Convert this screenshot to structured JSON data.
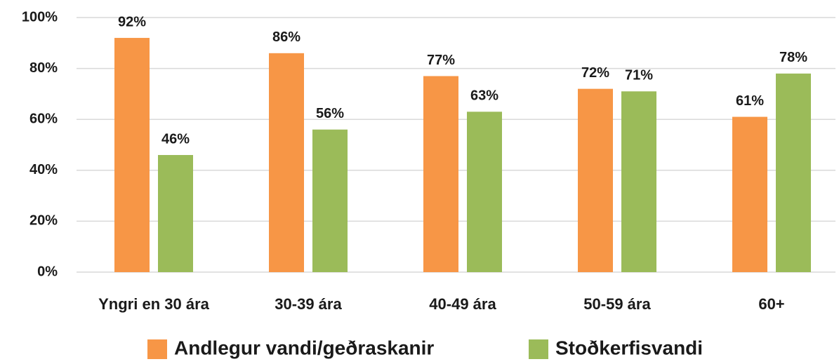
{
  "chart_data": {
    "type": "bar",
    "categories": [
      "Yngri en 30 ára",
      "30-39 ára",
      "40-49 ára",
      "50-59 ára",
      "60+"
    ],
    "series": [
      {
        "name": "Andlegur vandi/geðraskanir",
        "color": "#f79646",
        "values": [
          92,
          86,
          77,
          72,
          61
        ],
        "value_labels": [
          "92%",
          "86%",
          "77%",
          "72%",
          "61%"
        ]
      },
      {
        "name": "Stoðkerfisvandi",
        "color": "#9bbb59",
        "values": [
          46,
          56,
          63,
          71,
          78
        ],
        "value_labels": [
          "46%",
          "56%",
          "63%",
          "71%",
          "78%"
        ]
      }
    ],
    "ylim": [
      0,
      100
    ],
    "yticks": [
      {
        "value": 0,
        "label": "0%"
      },
      {
        "value": 20,
        "label": "20%"
      },
      {
        "value": 40,
        "label": "40%"
      },
      {
        "value": 60,
        "label": "60%"
      },
      {
        "value": 80,
        "label": "80%"
      },
      {
        "value": 100,
        "label": "100%"
      }
    ],
    "grid": true,
    "legend": "bottom"
  }
}
